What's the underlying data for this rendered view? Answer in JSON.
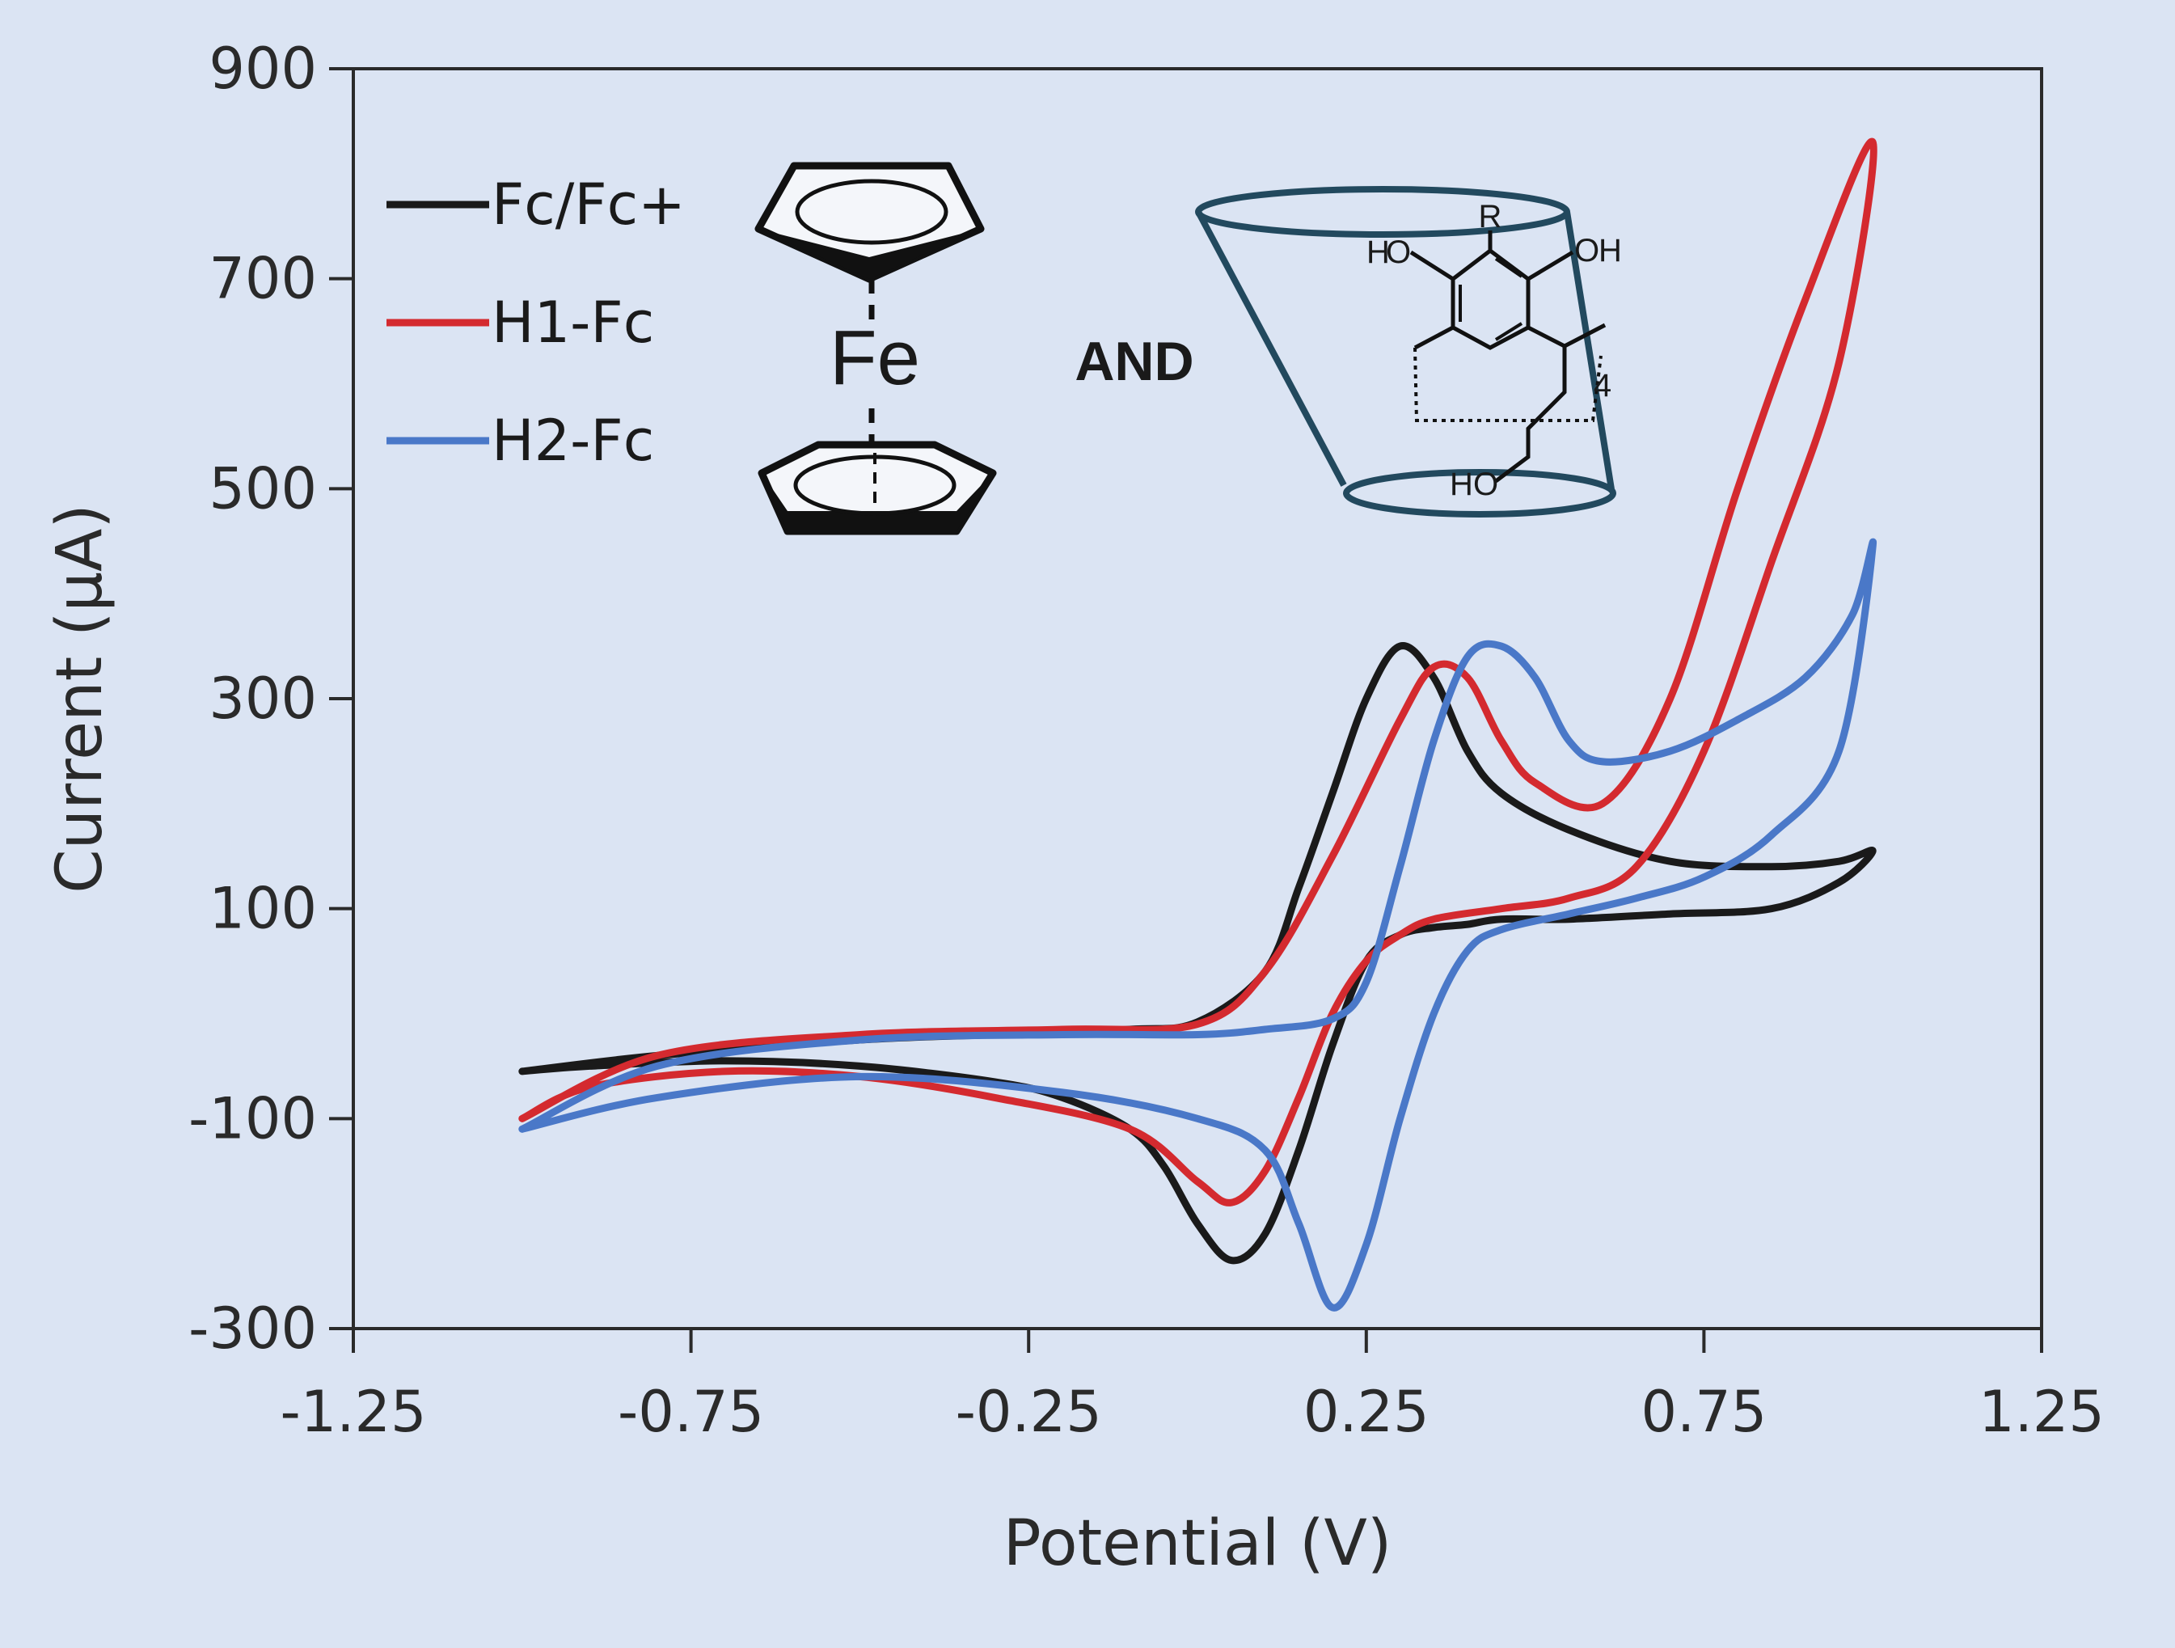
{
  "chart_data": {
    "type": "line",
    "title": "",
    "xlabel": "Potential (V)",
    "ylabel": "Current (μA)",
    "xlim": [
      -1.25,
      1.25
    ],
    "ylim": [
      -300,
      900
    ],
    "x_ticks": [
      -1.25,
      -0.75,
      -0.25,
      0.25,
      0.75,
      1.25
    ],
    "x_tick_labels": [
      "-1.25",
      "-0.75",
      "-0.25",
      "0.25",
      "0.75",
      "1.25"
    ],
    "y_ticks": [
      -300,
      -100,
      100,
      300,
      500,
      700,
      900
    ],
    "y_tick_labels": [
      "-300",
      "-100",
      "100",
      "300",
      "500",
      "700",
      "900"
    ],
    "grid": false,
    "legend_position": "top-left",
    "series": [
      {
        "name": "Fc/Fc+",
        "color": "#1a1a1a",
        "x": [
          -1.0,
          -0.8,
          -0.5,
          -0.3,
          -0.1,
          0.0,
          0.1,
          0.15,
          0.2,
          0.25,
          0.3,
          0.35,
          0.4,
          0.45,
          0.55,
          0.7,
          0.85,
          0.95,
          1.0,
          0.95,
          0.85,
          0.7,
          0.55,
          0.45,
          0.4,
          0.35,
          0.3,
          0.25,
          0.2,
          0.15,
          0.1,
          0.05,
          0.0,
          -0.05,
          -0.1,
          -0.2,
          -0.3,
          -0.5,
          -0.7,
          -0.9,
          -1.0
        ],
        "y": [
          -55,
          -40,
          -25,
          -20,
          -15,
          -8,
          40,
          120,
          210,
          300,
          350,
          320,
          250,
          210,
          175,
          145,
          140,
          145,
          155,
          125,
          100,
          95,
          90,
          90,
          85,
          82,
          75,
          50,
          -30,
          -130,
          -210,
          -235,
          -200,
          -145,
          -110,
          -80,
          -65,
          -50,
          -45,
          -50,
          -55
        ]
      },
      {
        "name": "H1-Fc",
        "color": "#d42a2f",
        "x": [
          -1.0,
          -0.8,
          -0.5,
          -0.2,
          0.0,
          0.1,
          0.2,
          0.3,
          0.35,
          0.4,
          0.45,
          0.5,
          0.6,
          0.7,
          0.8,
          0.9,
          1.0,
          0.95,
          0.85,
          0.75,
          0.65,
          0.55,
          0.45,
          0.35,
          0.3,
          0.25,
          0.2,
          0.15,
          0.1,
          0.05,
          0.0,
          -0.1,
          -0.3,
          -0.5,
          -0.7,
          -0.9,
          -1.0
        ],
        "y": [
          -100,
          -40,
          -20,
          -15,
          -10,
          40,
          150,
          280,
          330,
          320,
          260,
          220,
          200,
          300,
          500,
          680,
          830,
          620,
          430,
          250,
          140,
          110,
          100,
          90,
          75,
          50,
          0,
          -80,
          -150,
          -180,
          -160,
          -110,
          -80,
          -60,
          -55,
          -70,
          -100
        ]
      },
      {
        "name": "H2-Fc",
        "color": "#4a78c8",
        "x": [
          -1.0,
          -0.8,
          -0.5,
          -0.2,
          0.0,
          0.1,
          0.2,
          0.25,
          0.3,
          0.35,
          0.4,
          0.45,
          0.5,
          0.55,
          0.6,
          0.7,
          0.8,
          0.9,
          0.97,
          1.0,
          0.95,
          0.85,
          0.75,
          0.65,
          0.55,
          0.45,
          0.4,
          0.35,
          0.3,
          0.25,
          0.2,
          0.15,
          0.1,
          0.0,
          -0.2,
          -0.5,
          -0.8,
          -1.0
        ],
        "y": [
          -110,
          -50,
          -25,
          -20,
          -20,
          -15,
          -5,
          30,
          140,
          260,
          340,
          350,
          320,
          260,
          240,
          250,
          280,
          320,
          380,
          445,
          250,
          170,
          130,
          110,
          95,
          80,
          60,
          0,
          -100,
          -220,
          -280,
          -200,
          -130,
          -100,
          -75,
          -60,
          -80,
          -110
        ]
      }
    ],
    "annotations": {
      "ferrocene_atom": "Fe",
      "joiner": "AND",
      "host_labels": {
        "r_group": "R",
        "oh_left_h": "H",
        "oh_left_o": "O",
        "oh_right_o": "O",
        "oh_right_h": "H",
        "repeat": "4",
        "bottom_h": "H",
        "bottom_o": "O"
      }
    }
  },
  "colors": {
    "background": "#dbe4f3",
    "axis": "#2a2a2a",
    "oxygen": "#d42a2f",
    "cup": "#22495e"
  }
}
